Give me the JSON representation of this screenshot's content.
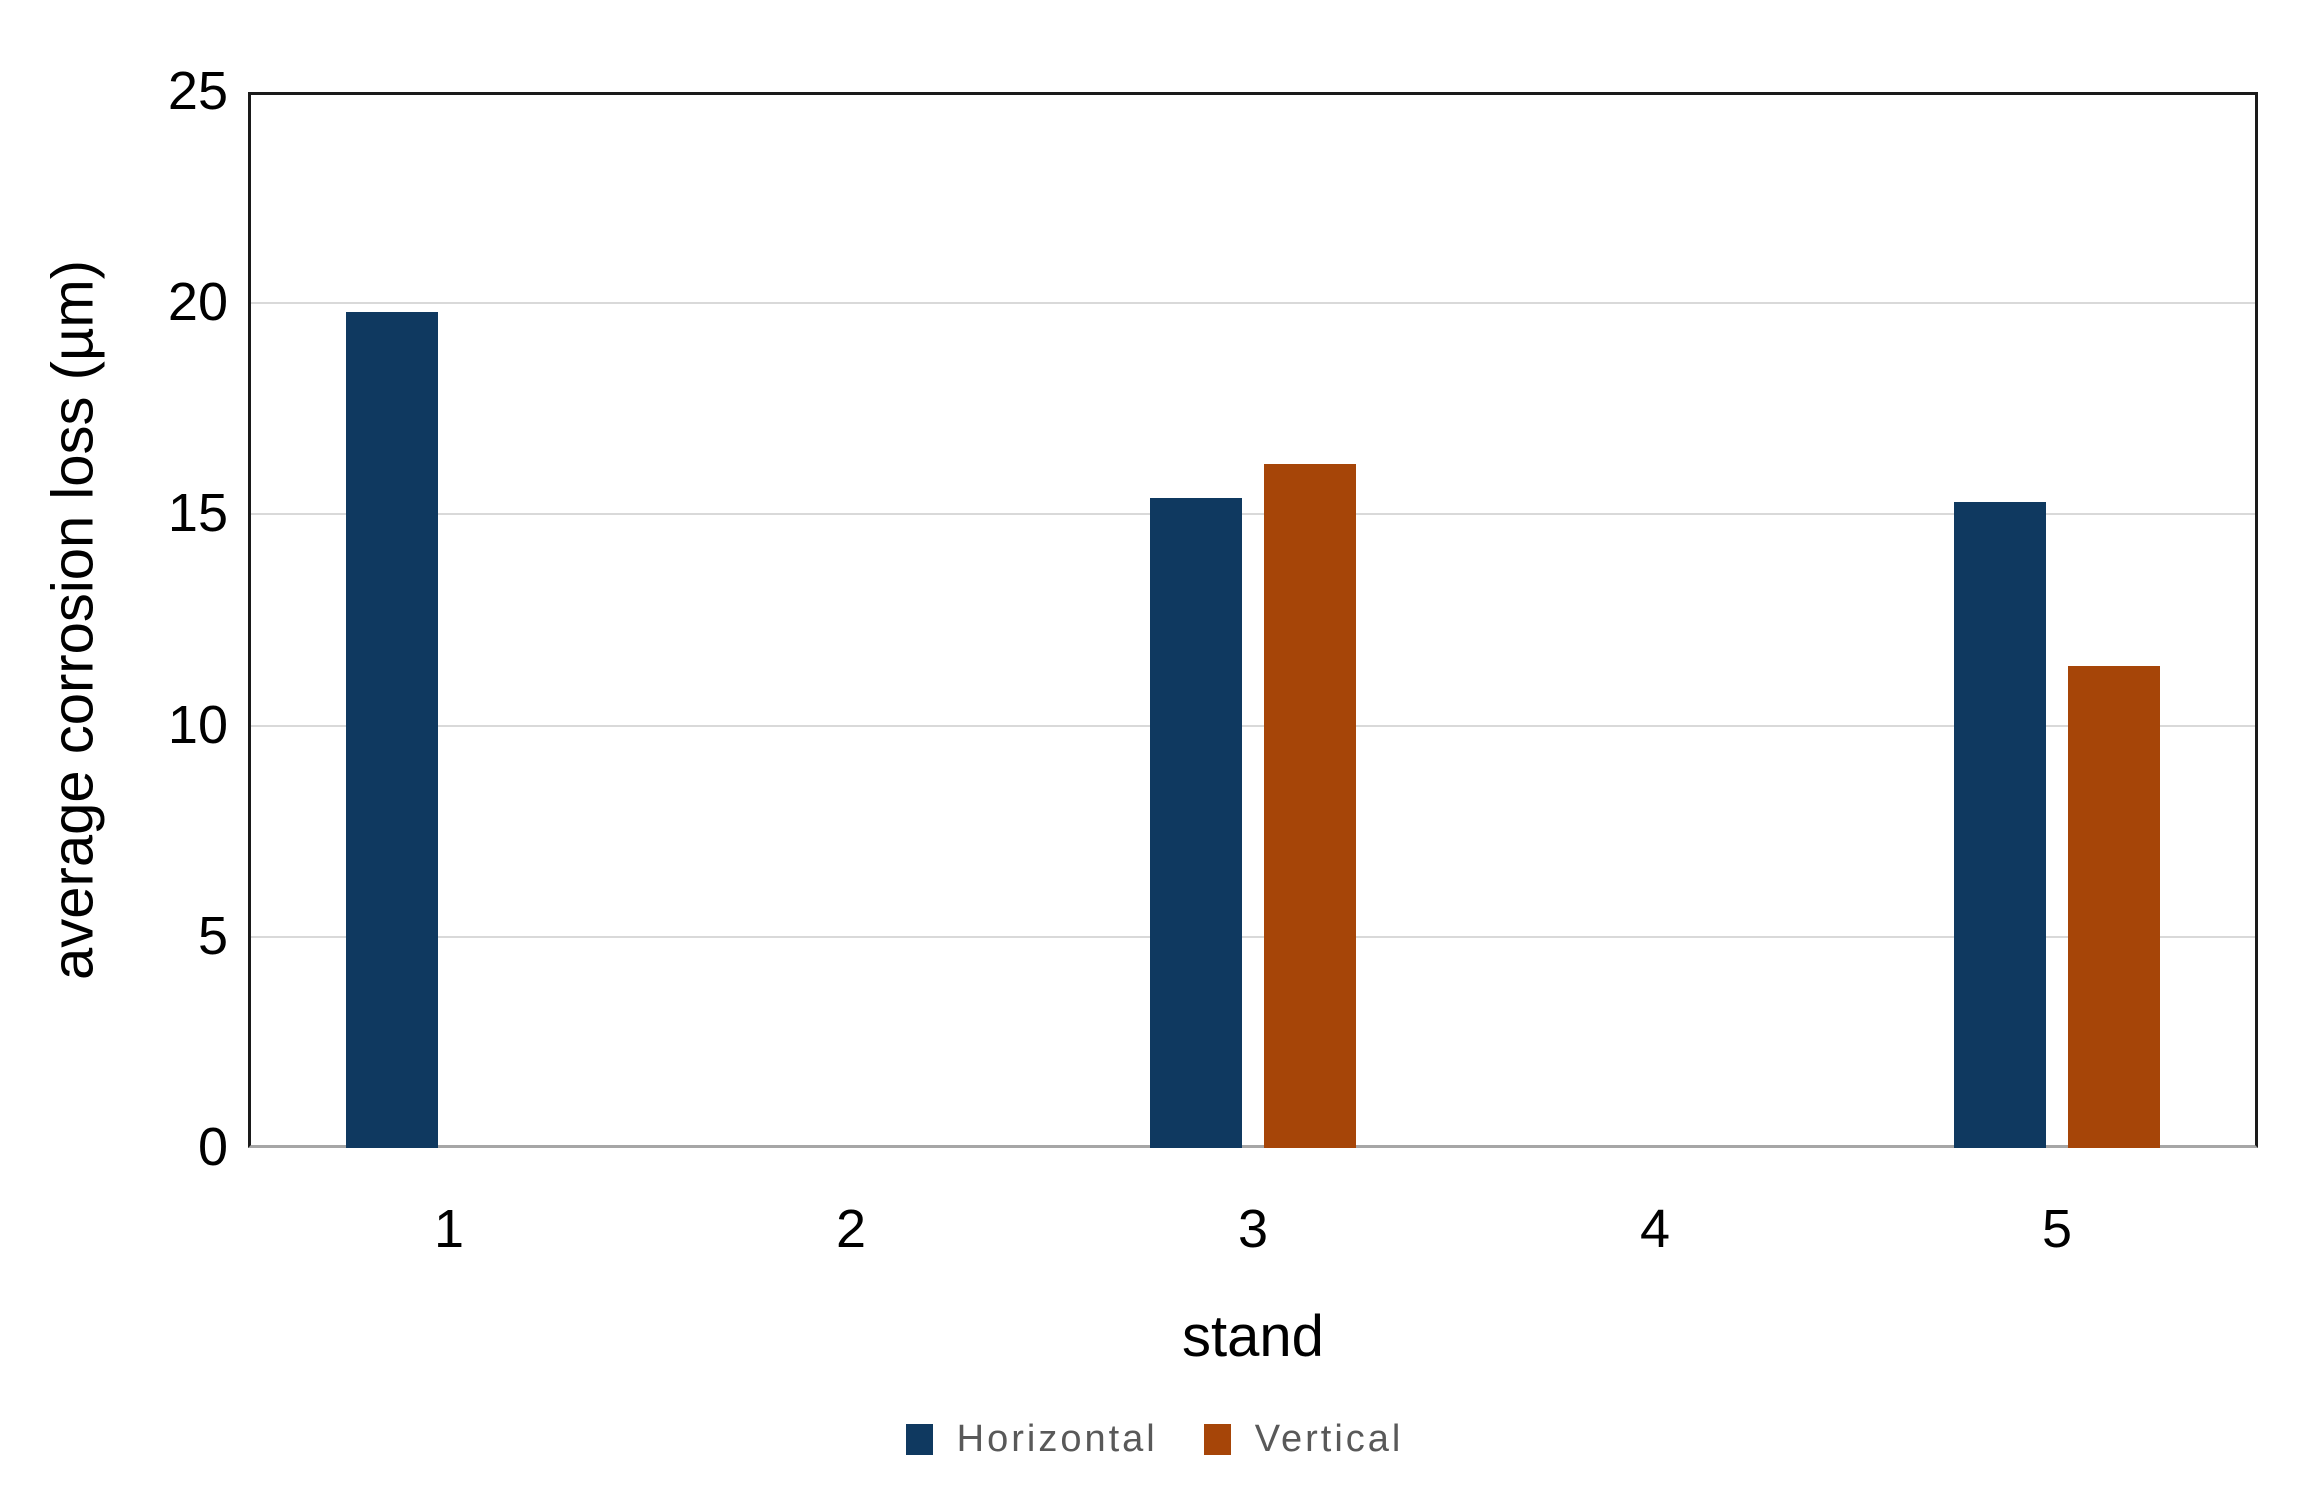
{
  "chart_data": {
    "type": "bar",
    "title": "",
    "categories": [
      "1",
      "2",
      "3",
      "4",
      "5"
    ],
    "series": [
      {
        "name": "Horizontal",
        "color": "#0F3960",
        "values": [
          19.8,
          0,
          15.4,
          0,
          15.3
        ]
      },
      {
        "name": "Vertical",
        "color": "#A64508",
        "values": [
          0,
          0,
          16.2,
          0,
          11.4
        ]
      }
    ],
    "xlabel": "stand",
    "ylabel": "average corrosion loss (µm)",
    "ylim": [
      0,
      25
    ],
    "yticks": [
      0,
      5,
      10,
      15,
      20,
      25
    ],
    "grid": true,
    "legend_position": "bottom-center"
  },
  "colors": {
    "background": "#FFFFFF",
    "plot_border": "#1A1A1A",
    "baseline": "#A6A6A6",
    "gridline": "#D9D9D9",
    "axis_text": "#000000",
    "legend_text": "#595959"
  }
}
